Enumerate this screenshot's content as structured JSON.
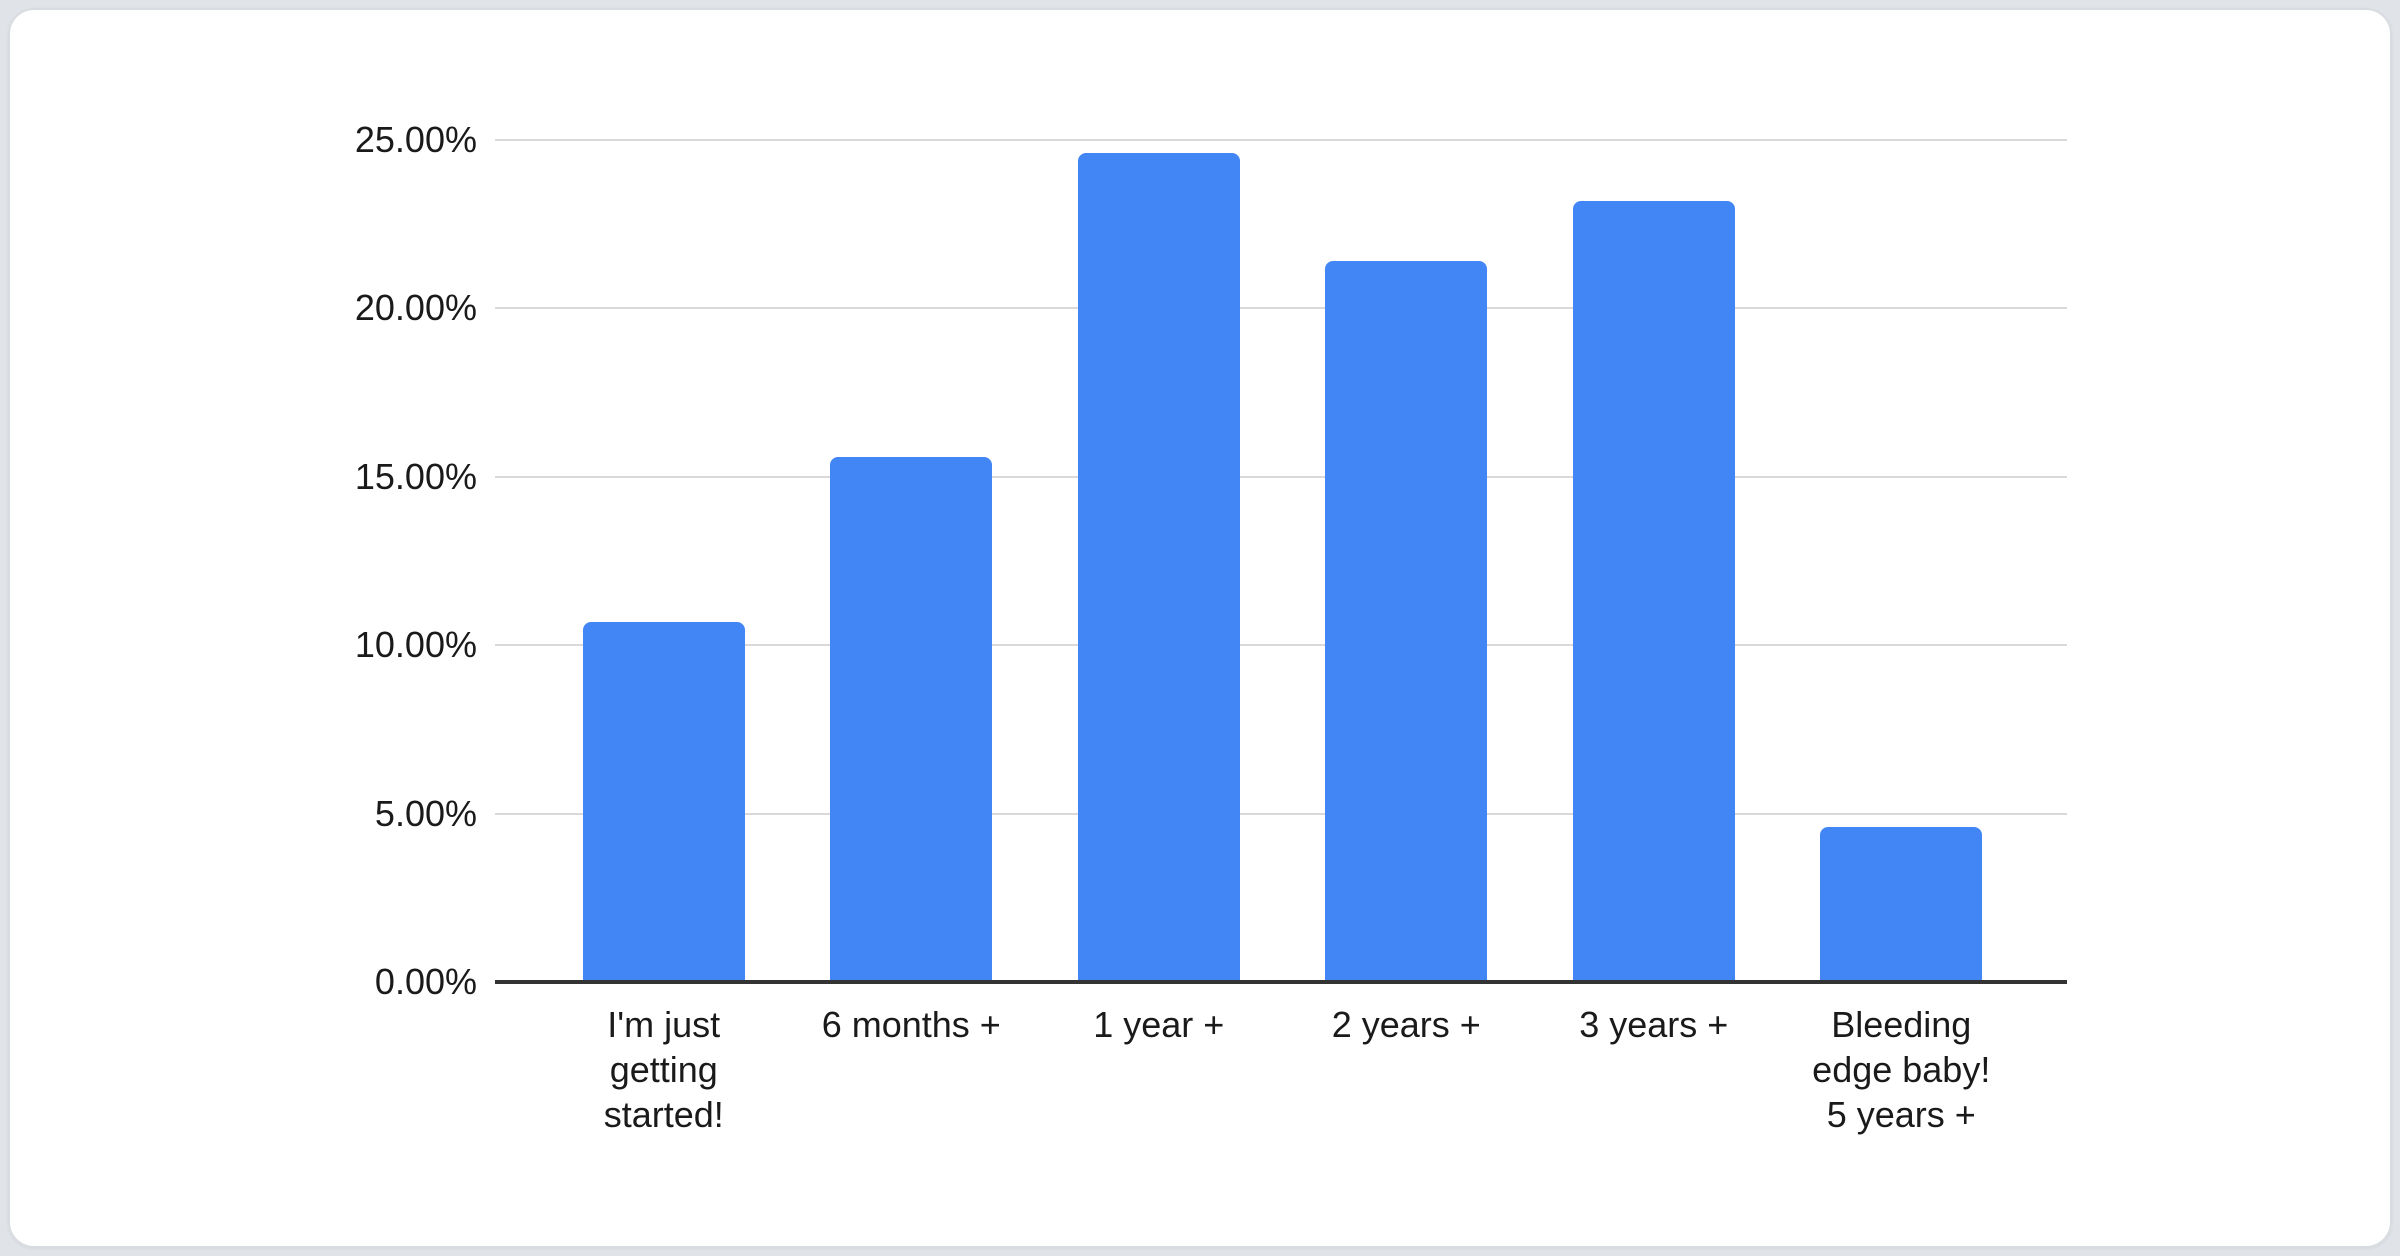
{
  "page": {
    "background_color": "#e0e3e7",
    "card_background_color": "#ffffff",
    "card_border_color": "#d8dbdf"
  },
  "chart_data": {
    "type": "bar",
    "title": "",
    "xlabel": "",
    "ylabel": "",
    "categories": [
      "I'm just getting started!",
      "6 months +",
      "1 year +",
      "2 years +",
      "3 years +",
      "Bleeding edge baby! 5 years +"
    ],
    "category_label_lines": [
      [
        "I'm just",
        "getting",
        "started!"
      ],
      [
        "6 months +"
      ],
      [
        "1 year +"
      ],
      [
        "2 years +"
      ],
      [
        "3 years +"
      ],
      [
        "Bleeding",
        "edge baby!",
        "5 years +"
      ]
    ],
    "values": [
      10.7,
      15.6,
      24.6,
      21.4,
      23.2,
      4.6
    ],
    "value_unit": "%",
    "ylim": [
      0,
      25
    ],
    "y_ticks": [
      {
        "value": 0,
        "label": "0.00%"
      },
      {
        "value": 5,
        "label": "5.00%"
      },
      {
        "value": 10,
        "label": "10.00%"
      },
      {
        "value": 15,
        "label": "15.00%"
      },
      {
        "value": 20,
        "label": "20.00%"
      },
      {
        "value": 25,
        "label": "25.00%"
      }
    ],
    "grid": true,
    "legend": "none",
    "bar_color": "#4285f4",
    "gridline_color": "#d9d9d9",
    "axis_line_color": "#333333",
    "label_color": "#1a1a1a"
  }
}
